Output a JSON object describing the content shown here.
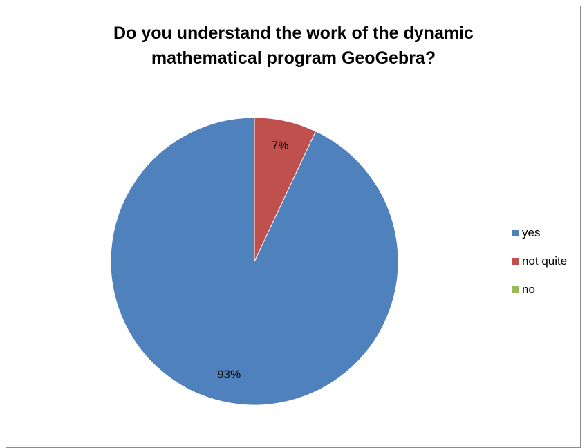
{
  "chart_data": {
    "type": "pie",
    "title_lines": [
      "Do you understand the work of the dynamic",
      "mathematical program GeoGebra?"
    ],
    "categories": [
      "yes",
      "not quite",
      "no"
    ],
    "values": [
      93,
      7,
      0
    ],
    "data_labels": [
      "93%",
      "7%",
      ""
    ],
    "colors": [
      "#4f81bd",
      "#c0504d",
      "#9bbb59"
    ],
    "legend_position": "right"
  }
}
